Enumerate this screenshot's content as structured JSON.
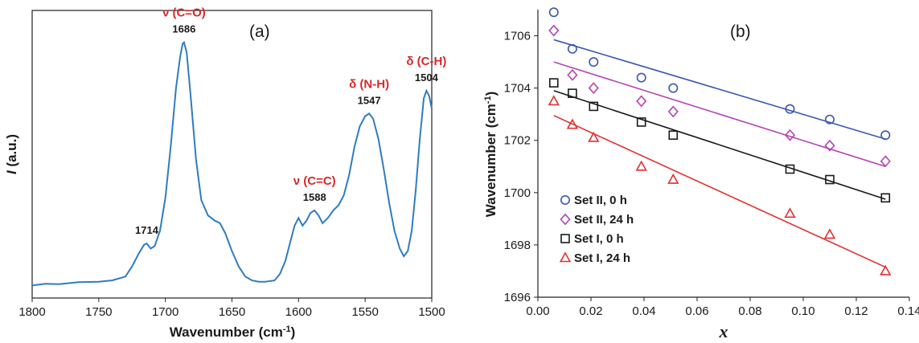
{
  "chart_data": [
    {
      "panel": "(a)",
      "type": "line",
      "xlabel": "Wavenumber (cm",
      "xlabel_sup": "-1",
      "xlabel_close": ")",
      "ylabel_italic": "I",
      "ylabel_rest": " (a.u.)",
      "xlim": [
        1800,
        1500
      ],
      "x_reversed": true,
      "x_ticks": [
        "1800",
        "1750",
        "1700",
        "1650",
        "1600",
        "1550",
        "1500"
      ],
      "line_color": "#2f7cc1",
      "spectrum": [
        [
          1800,
          0.005
        ],
        [
          1790,
          0.012
        ],
        [
          1780,
          0.01
        ],
        [
          1765,
          0.018
        ],
        [
          1750,
          0.02
        ],
        [
          1740,
          0.025
        ],
        [
          1730,
          0.04
        ],
        [
          1725,
          0.08
        ],
        [
          1720,
          0.13
        ],
        [
          1716,
          0.165
        ],
        [
          1714,
          0.17
        ],
        [
          1711,
          0.15
        ],
        [
          1708,
          0.16
        ],
        [
          1704,
          0.22
        ],
        [
          1700,
          0.35
        ],
        [
          1696,
          0.55
        ],
        [
          1692,
          0.78
        ],
        [
          1689,
          0.9
        ],
        [
          1687,
          0.955
        ],
        [
          1686,
          0.96
        ],
        [
          1684,
          0.92
        ],
        [
          1681,
          0.75
        ],
        [
          1677,
          0.5
        ],
        [
          1673,
          0.34
        ],
        [
          1668,
          0.28
        ],
        [
          1663,
          0.26
        ],
        [
          1659,
          0.25
        ],
        [
          1655,
          0.21
        ],
        [
          1650,
          0.14
        ],
        [
          1645,
          0.08
        ],
        [
          1640,
          0.04
        ],
        [
          1635,
          0.025
        ],
        [
          1630,
          0.02
        ],
        [
          1625,
          0.02
        ],
        [
          1618,
          0.025
        ],
        [
          1614,
          0.05
        ],
        [
          1610,
          0.1
        ],
        [
          1606,
          0.18
        ],
        [
          1603,
          0.24
        ],
        [
          1600,
          0.27
        ],
        [
          1597,
          0.24
        ],
        [
          1594,
          0.26
        ],
        [
          1591,
          0.29
        ],
        [
          1588,
          0.3
        ],
        [
          1585,
          0.28
        ],
        [
          1582,
          0.25
        ],
        [
          1578,
          0.27
        ],
        [
          1574,
          0.3
        ],
        [
          1570,
          0.32
        ],
        [
          1566,
          0.36
        ],
        [
          1562,
          0.44
        ],
        [
          1558,
          0.55
        ],
        [
          1554,
          0.63
        ],
        [
          1550,
          0.67
        ],
        [
          1547,
          0.68
        ],
        [
          1544,
          0.66
        ],
        [
          1540,
          0.58
        ],
        [
          1536,
          0.46
        ],
        [
          1532,
          0.33
        ],
        [
          1528,
          0.22
        ],
        [
          1524,
          0.15
        ],
        [
          1521,
          0.12
        ],
        [
          1518,
          0.14
        ],
        [
          1515,
          0.22
        ],
        [
          1512,
          0.38
        ],
        [
          1509,
          0.58
        ],
        [
          1506,
          0.74
        ],
        [
          1504,
          0.77
        ],
        [
          1502,
          0.75
        ],
        [
          1500,
          0.7
        ]
      ],
      "peak_labels": [
        {
          "mode": "ν (C=O)",
          "value": "1686",
          "x": 1686,
          "y": 0.96
        },
        {
          "mode": "",
          "value": "1714",
          "x": 1714,
          "y": 0.17
        },
        {
          "mode": "ν (C=C)",
          "value": "1588",
          "x": 1588,
          "y": 0.3
        },
        {
          "mode": "δ (N-H)",
          "value": "1547",
          "x": 1547,
          "y": 0.68
        },
        {
          "mode": "δ (C-H)",
          "value": "1504",
          "x": 1504,
          "y": 0.77
        }
      ],
      "annotation_color": "#d42a2a"
    },
    {
      "panel": "(b)",
      "type": "scatter",
      "xlabel": "x",
      "ylabel": "Wavenumber (cm",
      "ylabel_sup": "-1",
      "ylabel_close": ")",
      "xlim": [
        0,
        0.14
      ],
      "ylim": [
        1696,
        1707
      ],
      "x_ticks": [
        "0.00",
        "0.02",
        "0.04",
        "0.06",
        "0.08",
        "0.10",
        "0.12",
        "0.14"
      ],
      "y_ticks": [
        "1696",
        "1698",
        "1700",
        "1702",
        "1704",
        "1706"
      ],
      "x": [
        0.006,
        0.013,
        0.021,
        0.039,
        0.051,
        0.095,
        0.11,
        0.131
      ],
      "legend_position": "bottom-left",
      "series": [
        {
          "name": "Set II, 0 h",
          "marker": "circle",
          "color": "#3a57b0",
          "values": [
            1706.9,
            1705.5,
            1705.0,
            1704.4,
            1704.0,
            1703.2,
            1702.8,
            1702.2
          ],
          "fit": [
            1705.85,
            1702.05
          ]
        },
        {
          "name": "Set II, 24 h",
          "marker": "diamond",
          "color": "#b444b4",
          "values": [
            1706.2,
            1704.5,
            1704.0,
            1703.5,
            1703.1,
            1702.2,
            1701.8,
            1701.2
          ],
          "fit": [
            1705.0,
            1701.0
          ]
        },
        {
          "name": "Set I, 0 h",
          "marker": "square",
          "color": "#1a1a1a",
          "values": [
            1704.2,
            1703.8,
            1703.3,
            1702.7,
            1702.2,
            1700.9,
            1700.5,
            1699.8
          ],
          "fit": [
            1703.9,
            1699.75
          ]
        },
        {
          "name": "Set I, 24 h",
          "marker": "triangle",
          "color": "#e03030",
          "values": [
            1703.5,
            1702.6,
            1702.1,
            1701.0,
            1700.5,
            1699.2,
            1698.4,
            1697.0
          ],
          "fit": [
            1702.95,
            1697.15
          ]
        }
      ]
    }
  ]
}
